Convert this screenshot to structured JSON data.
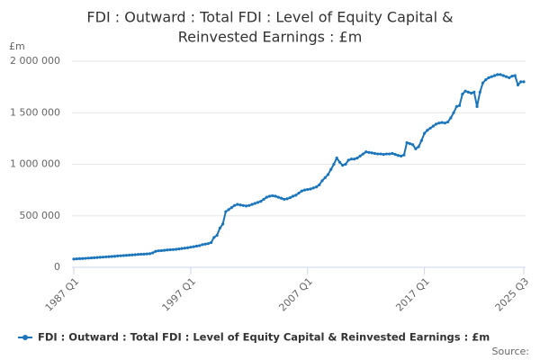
{
  "chart_data": {
    "type": "line",
    "title": [
      "FDI : Outward : Total FDI : Level of Equity Capital &",
      "Reinvested Earnings : £m"
    ],
    "y_unit": "£m",
    "source": "Source:",
    "categories": [
      "1987 Q1",
      null,
      null,
      null,
      null,
      null,
      null,
      null,
      null,
      null,
      null,
      null,
      null,
      null,
      null,
      null,
      null,
      null,
      null,
      null,
      null,
      null,
      null,
      null,
      null,
      null,
      null,
      null,
      null,
      null,
      null,
      null,
      null,
      null,
      null,
      null,
      null,
      null,
      null,
      null,
      "1997 Q1",
      null,
      null,
      null,
      null,
      null,
      null,
      null,
      null,
      null,
      null,
      null,
      null,
      null,
      null,
      null,
      null,
      null,
      null,
      null,
      null,
      null,
      null,
      null,
      null,
      null,
      null,
      null,
      null,
      null,
      null,
      null,
      null,
      null,
      null,
      null,
      null,
      null,
      null,
      null,
      "2007 Q1",
      null,
      null,
      null,
      null,
      null,
      null,
      null,
      null,
      null,
      null,
      null,
      null,
      null,
      null,
      null,
      null,
      null,
      null,
      null,
      null,
      null,
      null,
      null,
      null,
      null,
      null,
      null,
      null,
      null,
      null,
      null,
      null,
      null,
      null,
      null,
      null,
      null,
      null,
      null,
      "2017 Q1",
      null,
      null,
      null,
      null,
      null,
      null,
      null,
      null,
      null,
      null,
      null,
      null,
      null,
      null,
      null,
      null,
      null,
      null,
      null,
      null,
      null,
      null,
      null,
      null,
      null,
      null,
      null,
      null,
      null,
      null,
      null,
      null,
      null,
      "2025 Q3"
    ],
    "series": [
      {
        "name": "FDI : Outward : Total FDI : Level of Equity Capital & Reinvested Earnings : £m",
        "color": "#1b75bb",
        "values": [
          80000,
          82000,
          84000,
          85000,
          87000,
          89000,
          91000,
          93000,
          95000,
          97000,
          99000,
          101000,
          103000,
          105000,
          107000,
          110000,
          112000,
          114000,
          116000,
          118000,
          120000,
          122000,
          125000,
          127000,
          128000,
          130000,
          132000,
          140000,
          155000,
          160000,
          162000,
          165000,
          168000,
          170000,
          172000,
          175000,
          178000,
          182000,
          186000,
          190000,
          195000,
          200000,
          205000,
          210000,
          220000,
          225000,
          230000,
          240000,
          290000,
          310000,
          380000,
          420000,
          540000,
          560000,
          580000,
          600000,
          610000,
          605000,
          600000,
          595000,
          600000,
          610000,
          620000,
          630000,
          640000,
          660000,
          680000,
          690000,
          695000,
          690000,
          680000,
          670000,
          660000,
          665000,
          675000,
          690000,
          700000,
          720000,
          740000,
          750000,
          755000,
          760000,
          770000,
          780000,
          800000,
          840000,
          870000,
          900000,
          950000,
          1000000,
          1060000,
          1020000,
          990000,
          1000000,
          1040000,
          1050000,
          1050000,
          1060000,
          1080000,
          1100000,
          1120000,
          1115000,
          1110000,
          1105000,
          1100000,
          1100000,
          1095000,
          1100000,
          1100000,
          1105000,
          1095000,
          1085000,
          1080000,
          1090000,
          1210000,
          1200000,
          1190000,
          1150000,
          1170000,
          1230000,
          1300000,
          1330000,
          1350000,
          1370000,
          1390000,
          1400000,
          1405000,
          1400000,
          1410000,
          1450000,
          1500000,
          1560000,
          1570000,
          1680000,
          1710000,
          1700000,
          1690000,
          1700000,
          1560000,
          1700000,
          1790000,
          1820000,
          1840000,
          1850000,
          1860000,
          1870000,
          1870000,
          1860000,
          1850000,
          1840000,
          1855000,
          1860000,
          1770000,
          1800000,
          1800000
        ]
      }
    ],
    "ylim": [
      0,
      2000000
    ],
    "yticks": [
      0,
      {
        "value": 500000,
        "label": "500 000"
      },
      {
        "value": 1000000,
        "label": "1 000 000"
      },
      {
        "value": 1500000,
        "label": "1 500 000"
      },
      {
        "value": 2000000,
        "label": "2 000 000"
      }
    ],
    "grid": true
  }
}
